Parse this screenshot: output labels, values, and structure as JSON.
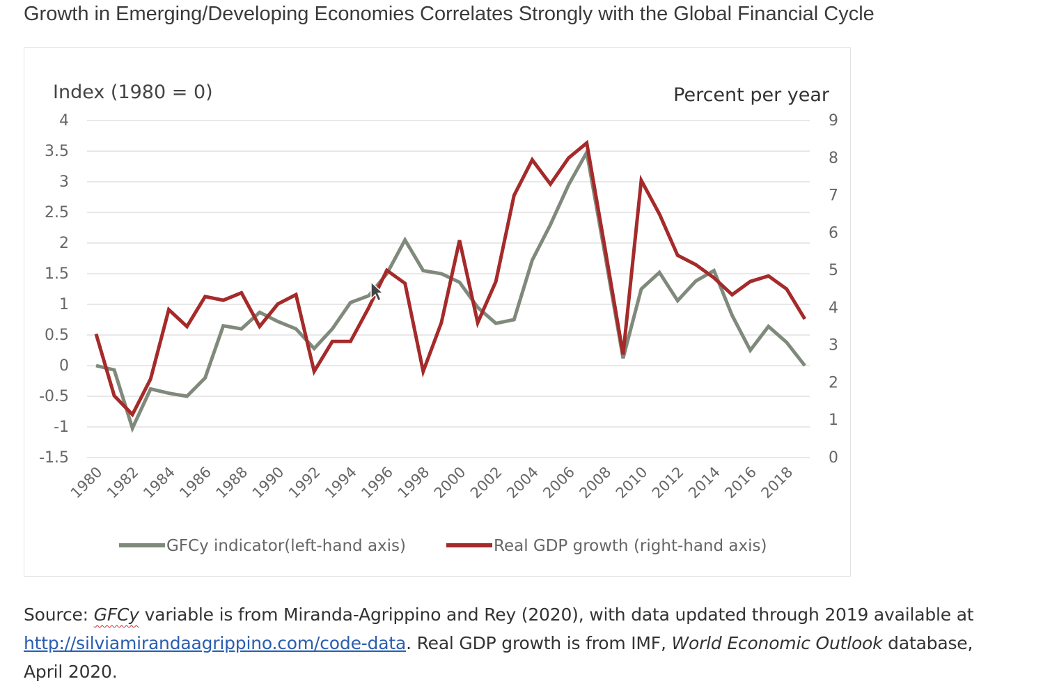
{
  "title": "Growth in Emerging/Developing Economies Correlates Strongly with the Global Financial Cycle",
  "source": {
    "prefix": "Source: ",
    "gfcy_term": "GFCy",
    "part1": " variable is from Miranda-Agrippino and Rey (2020), with data updated through 2019 available at",
    "link": "http://silviamirandaagrippino.com/code-data",
    "part2": ". Real GDP growth is from IMF, ",
    "weo": "World Economic Outlook",
    "part3": " database,",
    "part4": "April 2020."
  },
  "chart_data": {
    "type": "line",
    "left_axis_label": "Index (1980 = 0)",
    "right_axis_label": "Percent per year",
    "left_ylim": [
      -1.5,
      4
    ],
    "left_ticks": [
      4,
      3.5,
      3,
      2.5,
      2,
      1.5,
      1,
      0.5,
      0,
      -0.5,
      -1,
      -1.5
    ],
    "right_ylim": [
      0,
      9
    ],
    "right_ticks": [
      9,
      8,
      7,
      6,
      5,
      4,
      3,
      2,
      1,
      0
    ],
    "x": [
      1980,
      1981,
      1982,
      1983,
      1984,
      1985,
      1986,
      1987,
      1988,
      1989,
      1990,
      1991,
      1992,
      1993,
      1994,
      1995,
      1996,
      1997,
      1998,
      1999,
      2000,
      2001,
      2002,
      2003,
      2004,
      2005,
      2006,
      2007,
      2008,
      2009,
      2010,
      2011,
      2012,
      2013,
      2014,
      2015,
      2016,
      2017,
      2018,
      2019
    ],
    "x_tick_labels": [
      "1980",
      "1982",
      "1984",
      "1986",
      "1988",
      "1990",
      "1992",
      "1994",
      "1996",
      "1998",
      "2000",
      "2002",
      "2004",
      "2006",
      "2008",
      "2010",
      "2012",
      "2014",
      "2016",
      "2018"
    ],
    "grid": true,
    "legend_position": "bottom",
    "series": [
      {
        "name": "GFCy indicator(left-hand axis)",
        "axis": "left",
        "color": "#808a7c",
        "values": [
          0,
          -0.07,
          -1.02,
          -0.38,
          -0.45,
          -0.5,
          -0.2,
          0.65,
          0.6,
          0.87,
          0.72,
          0.6,
          0.28,
          0.6,
          1.03,
          1.14,
          1.5,
          2.05,
          1.55,
          1.5,
          1.36,
          0.95,
          0.69,
          0.75,
          1.72,
          2.3,
          2.95,
          3.48,
          1.82,
          0.12,
          1.25,
          1.52,
          1.06,
          1.38,
          1.55,
          0.82,
          0.25,
          0.64,
          0.38,
          0.0
        ]
      },
      {
        "name": "Real GDP growth (right-hand axis)",
        "axis": "right",
        "color": "#a52a2a",
        "values": [
          3.3,
          1.65,
          1.15,
          2.1,
          3.95,
          3.5,
          4.3,
          4.2,
          4.4,
          3.5,
          4.1,
          4.35,
          2.3,
          3.1,
          3.1,
          4.0,
          5.0,
          4.65,
          2.3,
          3.6,
          5.8,
          3.6,
          4.7,
          7.0,
          7.95,
          7.3,
          8.0,
          8.4,
          5.6,
          2.75,
          7.4,
          6.5,
          5.4,
          5.15,
          4.8,
          4.35,
          4.7,
          4.85,
          4.5,
          3.7
        ]
      }
    ]
  }
}
